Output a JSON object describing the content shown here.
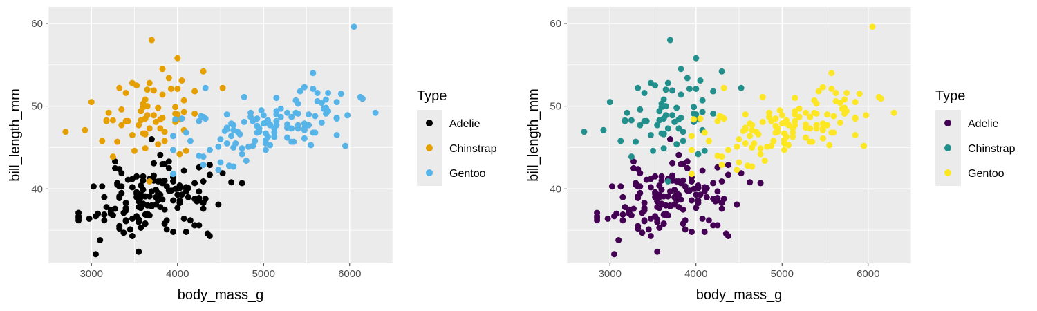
{
  "chart_data": [
    {
      "type": "scatter",
      "xlabel": "body_mass_g",
      "ylabel": "bill_length_mm",
      "xlim": [
        2500,
        6500
      ],
      "ylim": [
        31,
        62
      ],
      "xticks": [
        "3000",
        "4000",
        "5000",
        "6000"
      ],
      "yticks": [
        "40",
        "50",
        "60"
      ],
      "grid": true,
      "legend": {
        "title": "Type",
        "position": "right"
      },
      "series": [
        {
          "name": "Adelie",
          "color": "#000000",
          "points": []
        },
        {
          "name": "Chinstrap",
          "color": "#E69F00",
          "points": []
        },
        {
          "name": "Gentoo",
          "color": "#56B4E9",
          "points": []
        }
      ]
    },
    {
      "type": "scatter",
      "xlabel": "body_mass_g",
      "ylabel": "bill_length_mm",
      "xlim": [
        2500,
        6500
      ],
      "ylim": [
        31,
        62
      ],
      "xticks": [
        "3000",
        "4000",
        "5000",
        "6000"
      ],
      "yticks": [
        "40",
        "50",
        "60"
      ],
      "grid": true,
      "legend": {
        "title": "Type",
        "position": "right"
      },
      "series": [
        {
          "name": "Adelie",
          "color": "#440154",
          "points": []
        },
        {
          "name": "Chinstrap",
          "color": "#21908C",
          "points": []
        },
        {
          "name": "Gentoo",
          "color": "#FDE725",
          "points": []
        }
      ]
    }
  ]
}
